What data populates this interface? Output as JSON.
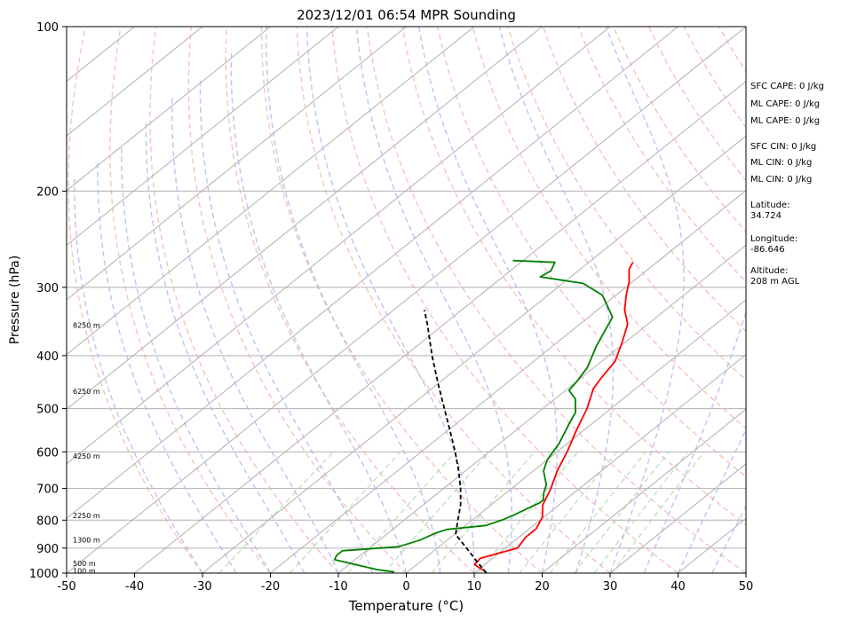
{
  "chart_data": {
    "type": "line",
    "title": "2023/12/01 06:54 MPR Sounding",
    "xlabel": "Temperature (°C)",
    "ylabel": "Pressure (hPa)",
    "xlim": [
      -50,
      50
    ],
    "ylim": [
      1000,
      100
    ],
    "y_scale": "log",
    "grid": true,
    "x_ticks": [
      -50,
      -40,
      -30,
      -20,
      -10,
      0,
      10,
      20,
      30,
      40,
      50
    ],
    "y_ticks": [
      100,
      200,
      300,
      400,
      500,
      600,
      700,
      800,
      900,
      1000
    ],
    "height_labels": [
      {
        "p": 990,
        "text": "100 m"
      },
      {
        "p": 960,
        "text": "500 m"
      },
      {
        "p": 870,
        "text": "1300 m"
      },
      {
        "p": 785,
        "text": "2250 m"
      },
      {
        "p": 610,
        "text": "4250 m"
      },
      {
        "p": 465,
        "text": "6250 m"
      },
      {
        "p": 352,
        "text": "8250 m"
      }
    ],
    "series": [
      {
        "color": "#ff0000",
        "points": [
          [
            11.5,
            995
          ],
          [
            8.5,
            965
          ],
          [
            8.2,
            940
          ],
          [
            11.8,
            900
          ],
          [
            11,
            860
          ],
          [
            11,
            830
          ],
          [
            9.8,
            790
          ],
          [
            7.6,
            750
          ],
          [
            5.8,
            700
          ],
          [
            3.5,
            650
          ],
          [
            1.5,
            600
          ],
          [
            -1,
            550
          ],
          [
            -3.5,
            500
          ],
          [
            -6.2,
            460
          ],
          [
            -7,
            440
          ],
          [
            -8,
            410
          ],
          [
            -10.3,
            380
          ],
          [
            -13,
            350
          ],
          [
            -16,
            330
          ],
          [
            -18.5,
            310
          ],
          [
            -20.5,
            293
          ],
          [
            -22.8,
            278
          ],
          [
            -23.5,
            270
          ]
        ]
      },
      {
        "color": "#008000",
        "points": [
          [
            -2,
            995
          ],
          [
            -5,
            985
          ],
          [
            -12,
            950
          ],
          [
            -13,
            945
          ],
          [
            -13.5,
            928
          ],
          [
            -13.5,
            910
          ],
          [
            -6,
            895
          ],
          [
            -4,
            870
          ],
          [
            -3,
            845
          ],
          [
            -2,
            832
          ],
          [
            3,
            818
          ],
          [
            4.5,
            798
          ],
          [
            5.2,
            783
          ],
          [
            6,
            762
          ],
          [
            6.8,
            743
          ],
          [
            6.8,
            735
          ],
          [
            5.5,
            712
          ],
          [
            4.5,
            690
          ],
          [
            1.5,
            650
          ],
          [
            0,
            620
          ],
          [
            -1.2,
            580
          ],
          [
            -3.5,
            530
          ],
          [
            -4.5,
            508
          ],
          [
            -7,
            480
          ],
          [
            -9.5,
            463
          ],
          [
            -10,
            445
          ],
          [
            -11,
            420
          ],
          [
            -13.5,
            385
          ],
          [
            -16.5,
            340
          ],
          [
            -22,
            310
          ],
          [
            -27,
            295
          ],
          [
            -34.5,
            287
          ],
          [
            -34,
            280
          ],
          [
            -35,
            270
          ],
          [
            -41.5,
            268
          ]
        ]
      },
      {
        "color": "#000000",
        "dashed": true,
        "points": [
          [
            11.8,
            1000
          ],
          [
            8.1,
            950
          ],
          [
            4.3,
            900
          ],
          [
            0.2,
            850
          ],
          [
            -2.1,
            800
          ],
          [
            -4.5,
            750
          ],
          [
            -7.5,
            700
          ],
          [
            -11,
            650
          ],
          [
            -15,
            600
          ],
          [
            -19.5,
            550
          ],
          [
            -24.5,
            500
          ],
          [
            -30,
            450
          ],
          [
            -36,
            400
          ],
          [
            -42.5,
            350
          ],
          [
            -45.5,
            330
          ]
        ]
      }
    ],
    "side_labels": [
      {
        "p": 129,
        "text": "SFC CAPE: 0 J/kg"
      },
      {
        "p": 139,
        "text": "ML CAPE: 0 J/kg"
      },
      {
        "p": 149,
        "text": "ML CAPE: 0 J/kg"
      },
      {
        "p": 166,
        "text": "SFC CIN: 0 J/kg"
      },
      {
        "p": 178,
        "text": "ML CIN: 0 J/kg"
      },
      {
        "p": 191,
        "text": "ML CIN: 0 J/kg"
      },
      {
        "p": 213,
        "text": "Latitude:\n34.724"
      },
      {
        "p": 245,
        "text": "Longitude:\n-86.646"
      },
      {
        "p": 281,
        "text": "Altitude:\n208 m AGL"
      }
    ]
  }
}
